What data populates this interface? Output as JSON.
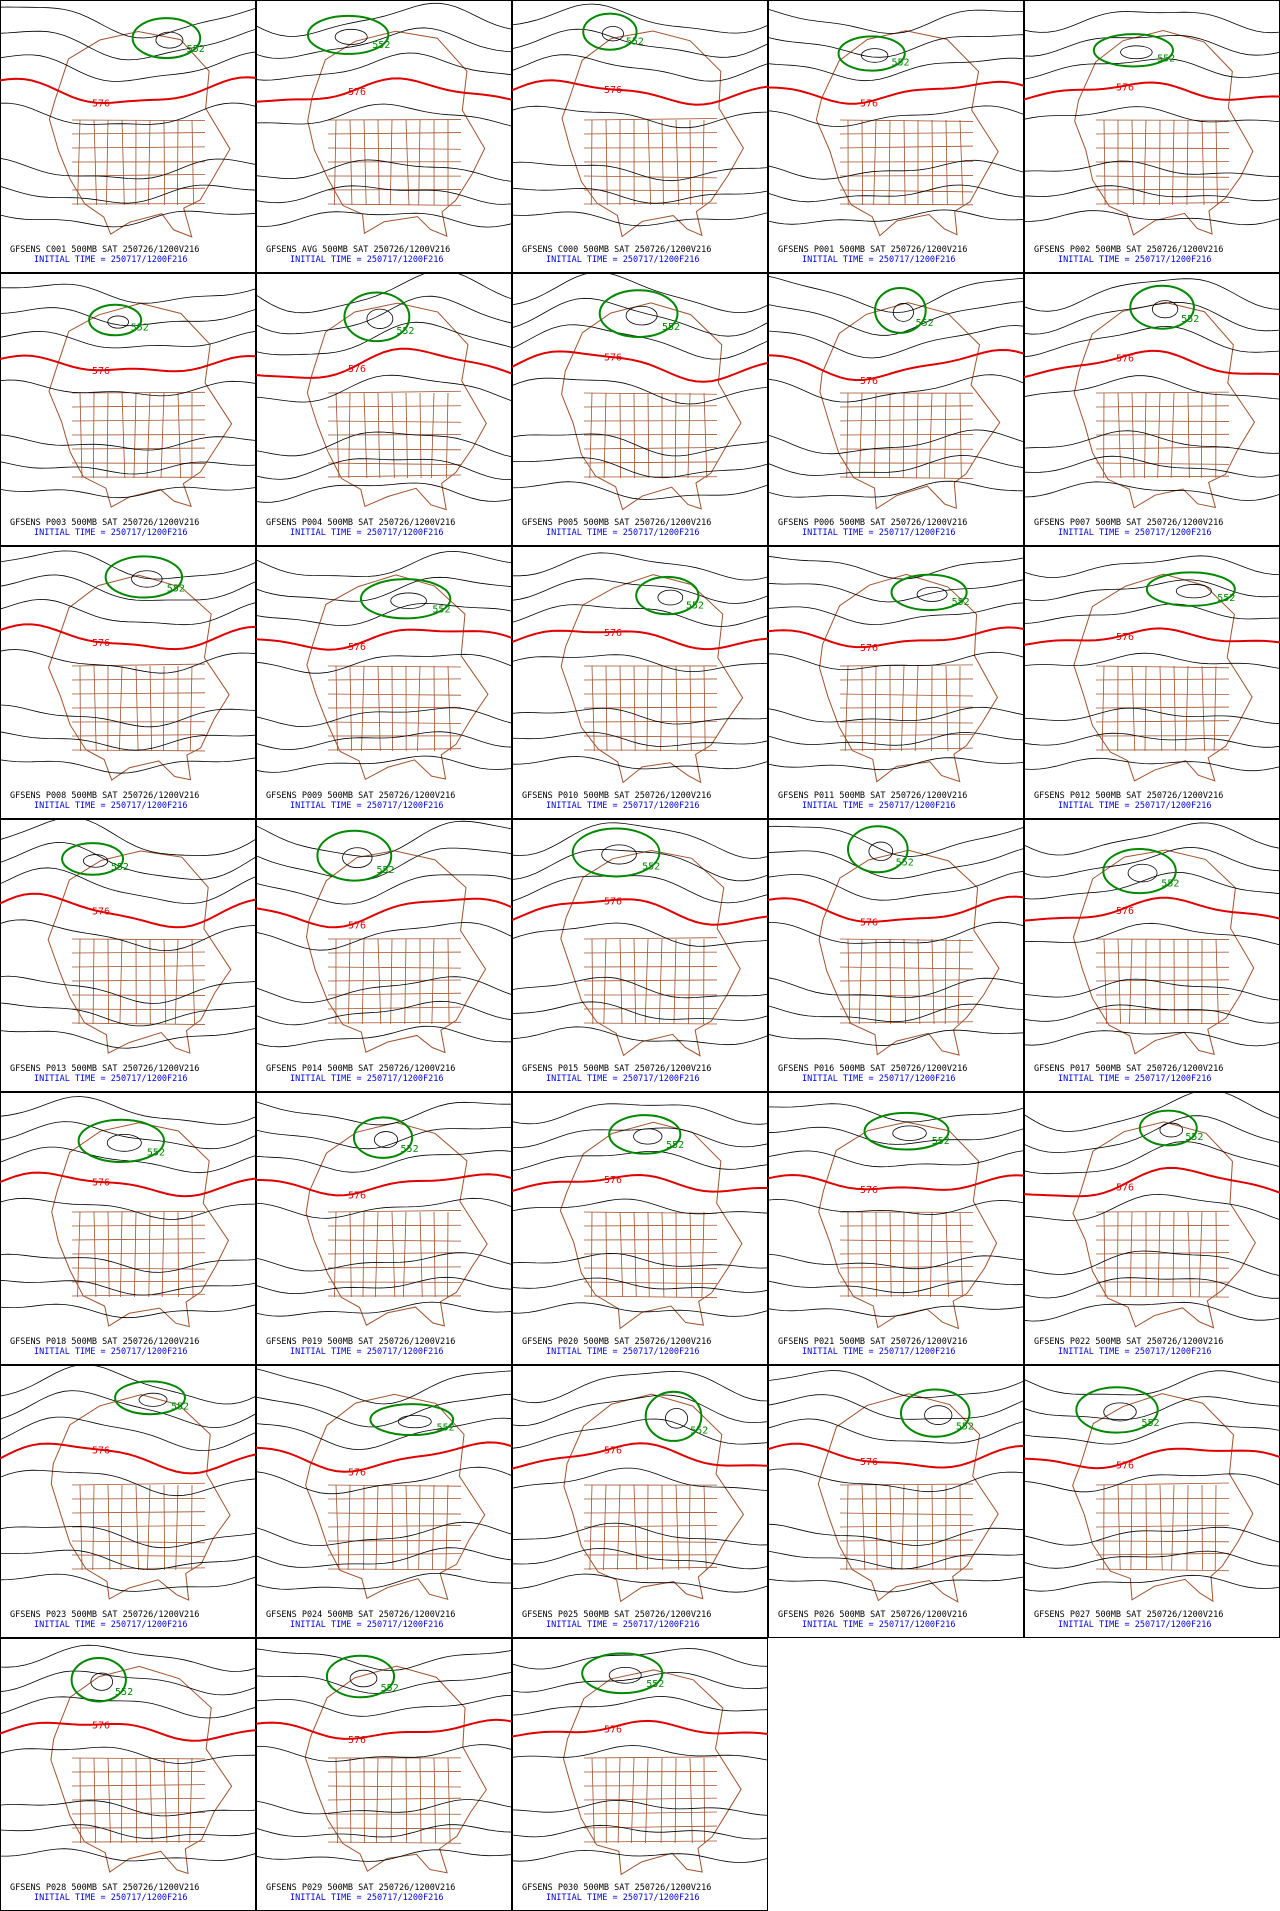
{
  "contour_labels": [
    "552",
    "576"
  ],
  "panels": [
    {
      "title": "GFSENS C001 500MB SAT 250726/1200V216",
      "init_time": "INITIAL TIME = 250717/1200F216"
    },
    {
      "title": "GFSENS AVG 500MB SAT 250726/1200V216",
      "init_time": "INITIAL TIME = 250717/1200F216"
    },
    {
      "title": "GFSENS C000 500MB SAT 250726/1200V216",
      "init_time": "INITIAL TIME = 250717/1200F216"
    },
    {
      "title": "GFSENS P001 500MB SAT 250726/1200V216",
      "init_time": "INITIAL TIME = 250717/1200F216"
    },
    {
      "title": "GFSENS P002 500MB SAT 250726/1200V216",
      "init_time": "INITIAL TIME = 250717/1200F216"
    },
    {
      "title": "GFSENS P003 500MB SAT 250726/1200V216",
      "init_time": "INITIAL TIME = 250717/1200F216"
    },
    {
      "title": "GFSENS P004 500MB SAT 250726/1200V216",
      "init_time": "INITIAL TIME = 250717/1200F216"
    },
    {
      "title": "GFSENS P005 500MB SAT 250726/1200V216",
      "init_time": "INITIAL TIME = 250717/1200F216"
    },
    {
      "title": "GFSENS P006 500MB SAT 250726/1200V216",
      "init_time": "INITIAL TIME = 250717/1200F216"
    },
    {
      "title": "GFSENS P007 500MB SAT 250726/1200V216",
      "init_time": "INITIAL TIME = 250717/1200F216"
    },
    {
      "title": "GFSENS P008 500MB SAT 250726/1200V216",
      "init_time": "INITIAL TIME = 250717/1200F216"
    },
    {
      "title": "GFSENS P009 500MB SAT 250726/1200V216",
      "init_time": "INITIAL TIME = 250717/1200F216"
    },
    {
      "title": "GFSENS P010 500MB SAT 250726/1200V216",
      "init_time": "INITIAL TIME = 250717/1200F216"
    },
    {
      "title": "GFSENS P011 500MB SAT 250726/1200V216",
      "init_time": "INITIAL TIME = 250717/1200F216"
    },
    {
      "title": "GFSENS P012 500MB SAT 250726/1200V216",
      "init_time": "INITIAL TIME = 250717/1200F216"
    },
    {
      "title": "GFSENS P013 500MB SAT 250726/1200V216",
      "init_time": "INITIAL TIME = 250717/1200F216"
    },
    {
      "title": "GFSENS P014 500MB SAT 250726/1200V216",
      "init_time": "INITIAL TIME = 250717/1200F216"
    },
    {
      "title": "GFSENS P015 500MB SAT 250726/1200V216",
      "init_time": "INITIAL TIME = 250717/1200F216"
    },
    {
      "title": "GFSENS P016 500MB SAT 250726/1200V216",
      "init_time": "INITIAL TIME = 250717/1200F216"
    },
    {
      "title": "GFSENS P017 500MB SAT 250726/1200V216",
      "init_time": "INITIAL TIME = 250717/1200F216"
    },
    {
      "title": "GFSENS P018 500MB SAT 250726/1200V216",
      "init_time": "INITIAL TIME = 250717/1200F216"
    },
    {
      "title": "GFSENS P019 500MB SAT 250726/1200V216",
      "init_time": "INITIAL TIME = 250717/1200F216"
    },
    {
      "title": "GFSENS P020 500MB SAT 250726/1200V216",
      "init_time": "INITIAL TIME = 250717/1200F216"
    },
    {
      "title": "GFSENS P021 500MB SAT 250726/1200V216",
      "init_time": "INITIAL TIME = 250717/1200F216"
    },
    {
      "title": "GFSENS P022 500MB SAT 250726/1200V216",
      "init_time": "INITIAL TIME = 250717/1200F216"
    },
    {
      "title": "GFSENS P023 500MB SAT 250726/1200V216",
      "init_time": "INITIAL TIME = 250717/1200F216"
    },
    {
      "title": "GFSENS P024 500MB SAT 250726/1200V216",
      "init_time": "INITIAL TIME = 250717/1200F216"
    },
    {
      "title": "GFSENS P025 500MB SAT 250726/1200V216",
      "init_time": "INITIAL TIME = 250717/1200F216"
    },
    {
      "title": "GFSENS P026 500MB SAT 250726/1200V216",
      "init_time": "INITIAL TIME = 250717/1200F216"
    },
    {
      "title": "GFSENS P027 500MB SAT 250726/1200V216",
      "init_time": "INITIAL TIME = 250717/1200F216"
    },
    {
      "title": "GFSENS P028 500MB SAT 250726/1200V216",
      "init_time": "INITIAL TIME = 250717/1200F216"
    },
    {
      "title": "GFSENS P029 500MB SAT 250726/1200V216",
      "init_time": "INITIAL TIME = 250717/1200F216"
    },
    {
      "title": "GFSENS P030 500MB SAT 250726/1200V216",
      "init_time": "INITIAL TIME = 250717/1200F216"
    }
  ]
}
